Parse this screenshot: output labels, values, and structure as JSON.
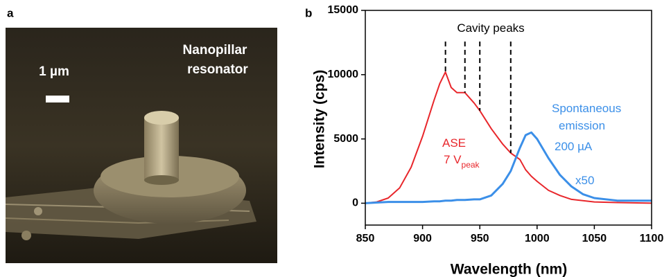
{
  "panel_a": {
    "label": "a",
    "title_lines": [
      "Nanopillar",
      "resonator"
    ],
    "scale_bar": "1 µm"
  },
  "panel_b": {
    "label": "b"
  },
  "chart_data": {
    "type": "line",
    "xlabel": "Wavelength (nm)",
    "ylabel": "Intensity (cps)",
    "x": [
      850,
      860,
      870,
      880,
      890,
      900,
      910,
      915,
      920,
      925,
      930,
      937,
      945,
      950,
      960,
      970,
      977,
      985,
      990,
      995,
      1000,
      1010,
      1020,
      1030,
      1040,
      1050,
      1070,
      1100
    ],
    "series": [
      {
        "name": "ASE",
        "color": "#e8262b",
        "values": [
          0,
          100,
          400,
          1200,
          2800,
          5200,
          8000,
          9300,
          10200,
          9000,
          8600,
          8600,
          7800,
          7200,
          5800,
          4600,
          3900,
          3400,
          2600,
          2100,
          1700,
          1000,
          600,
          300,
          200,
          100,
          50,
          0
        ]
      },
      {
        "name": "Spontaneous emission",
        "color": "#3b8fe8",
        "values": [
          0,
          50,
          100,
          100,
          100,
          100,
          150,
          150,
          200,
          200,
          250,
          250,
          300,
          300,
          600,
          1500,
          2500,
          4300,
          5300,
          5500,
          5000,
          3500,
          2200,
          1300,
          700,
          400,
          200,
          200
        ]
      }
    ],
    "cavity_peaks": [
      920,
      937,
      950,
      977
    ],
    "annotations": [
      {
        "text": "Cavity peaks"
      },
      {
        "text": "ASE"
      },
      {
        "text": "7 V",
        "subscript": "peak"
      },
      {
        "text": "Spontaneous"
      },
      {
        "text": "emission"
      },
      {
        "text": "200 µA"
      },
      {
        "text": "x50"
      }
    ],
    "xlim": [
      850,
      1100
    ],
    "ylim": [
      -1700,
      15000
    ],
    "xticks": [
      850,
      900,
      950,
      1000,
      1050,
      1100
    ],
    "yticks": [
      0,
      5000,
      10000,
      15000
    ]
  }
}
